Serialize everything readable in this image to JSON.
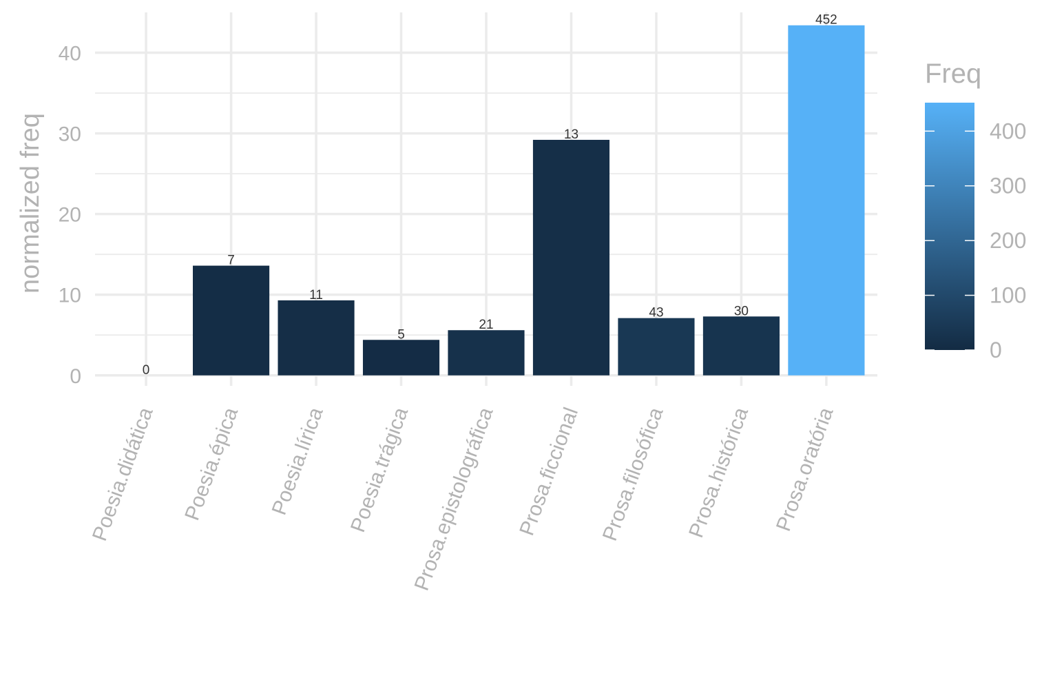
{
  "chart_data": {
    "type": "bar",
    "categories": [
      "Poesia.didática",
      "Poesia.épica",
      "Poesia.lírica",
      "Poesia.trágica",
      "Prosa.epistolográfica",
      "Prosa.ficcional",
      "Prosa.filosófica",
      "Prosa.histórica",
      "Prosa.oratória"
    ],
    "values": [
      0,
      13.6,
      9.3,
      4.4,
      5.6,
      29.2,
      7.1,
      7.3,
      43.4
    ],
    "freq": [
      0,
      7,
      11,
      5,
      21,
      13,
      43,
      30,
      452
    ],
    "bar_labels": [
      "0",
      "7",
      "11",
      "5",
      "21",
      "13",
      "43",
      "30",
      "452"
    ],
    "ylabel": "normalized freq",
    "xlabel": "",
    "ylim": [
      -1.3,
      45
    ],
    "yticks": [
      0,
      10,
      20,
      30,
      40
    ],
    "ytick_labels": [
      "0",
      "10",
      "20",
      "30",
      "40"
    ],
    "grid": true,
    "legend": {
      "title": "Freq",
      "placement": "right",
      "range": [
        0,
        452
      ],
      "ticks": [
        0,
        100,
        200,
        300,
        400
      ],
      "tick_labels": [
        "0",
        "100",
        "200",
        "300",
        "400"
      ],
      "color_low": "#132b43",
      "color_high": "#56b1f7"
    }
  }
}
